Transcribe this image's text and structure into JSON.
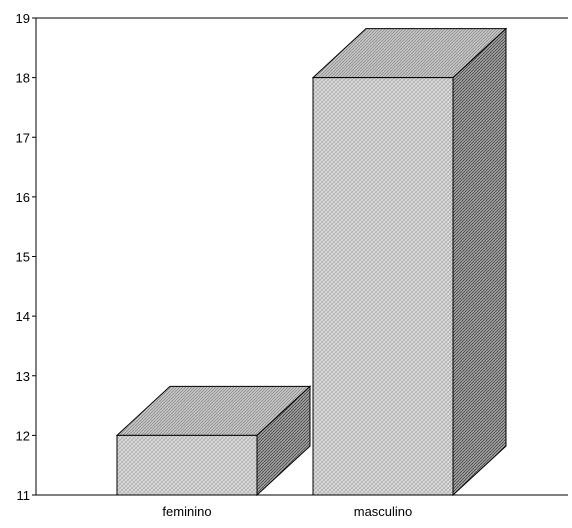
{
  "chart_data": {
    "type": "bar",
    "style": "3d",
    "categories": [
      "feminino",
      "masculino"
    ],
    "values": [
      12,
      18
    ],
    "title": "",
    "xlabel": "",
    "ylabel": "",
    "ylim": [
      11,
      19
    ],
    "yticks": [
      11,
      12,
      13,
      14,
      15,
      16,
      17,
      18,
      19
    ],
    "grid": false,
    "legend": "none",
    "colors": {
      "front_face": "#d8d8d8",
      "top_face": "#b4b4b4",
      "side_face": "#8a8a8a",
      "outline": "#000000"
    }
  }
}
